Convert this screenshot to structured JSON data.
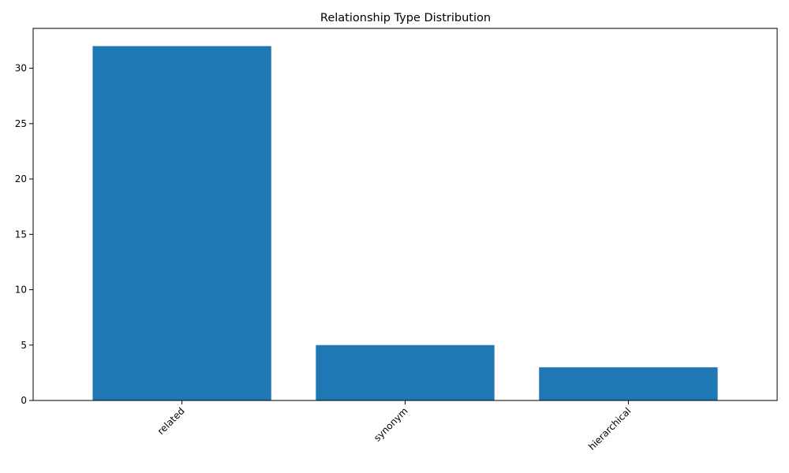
{
  "chart_data": {
    "type": "bar",
    "title": "Relationship Type Distribution",
    "categories": [
      "related",
      "synonym",
      "hierarchical"
    ],
    "values": [
      32,
      5,
      3
    ],
    "xlabel": "",
    "ylabel": "",
    "ylim": [
      0,
      33.6
    ],
    "yticks": [
      0,
      5,
      10,
      15,
      20,
      25,
      30
    ],
    "bar_color": "#1f77b4",
    "grid": false,
    "legend": "none",
    "xtick_rotation_deg": 45
  }
}
